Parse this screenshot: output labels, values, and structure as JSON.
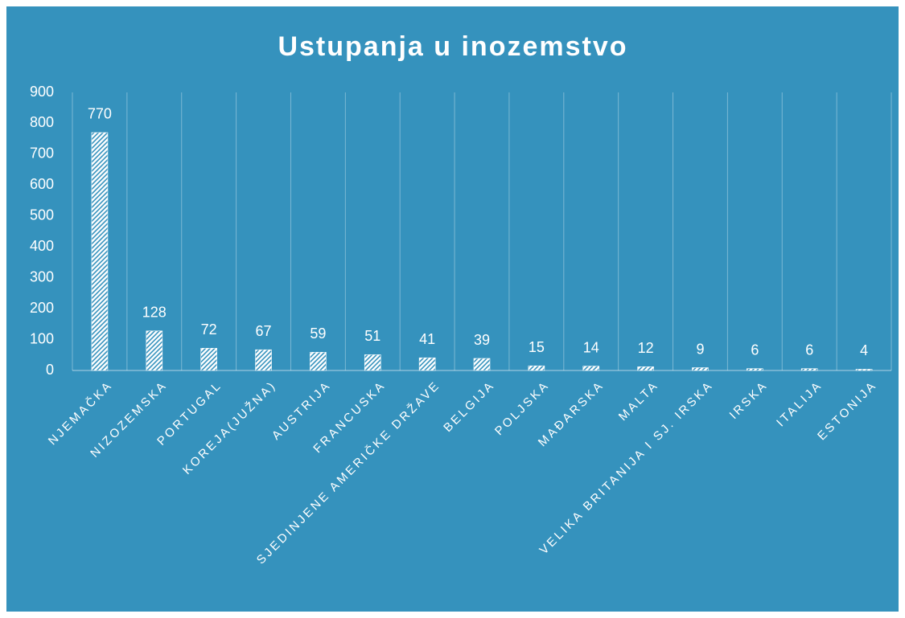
{
  "chart_data": {
    "type": "bar",
    "title": "Ustupanja u inozemstvo",
    "categories": [
      "NJEMAČKA",
      "NIZOZEMSKA",
      "PORTUGAL",
      "KOREJA(JUŽNA)",
      "AUSTRIJA",
      "FRANCUSKA",
      "SJEDINJENE AMERIČKE DRŽAVE",
      "BELGIJA",
      "POLJSKA",
      "MAĐARSKA",
      "MALTA",
      "VELIKA BRITANIJA I SJ. IRSKA",
      "IRSKA",
      "ITALIJA",
      "ESTONIJA"
    ],
    "values": [
      770,
      128,
      72,
      67,
      59,
      51,
      41,
      39,
      15,
      14,
      12,
      9,
      6,
      6,
      4
    ],
    "color": "#ffffff",
    "ylim": [
      0,
      900
    ],
    "yticks": [
      0,
      100,
      200,
      300,
      400,
      500,
      600,
      700,
      800,
      900
    ],
    "grid": false
  }
}
